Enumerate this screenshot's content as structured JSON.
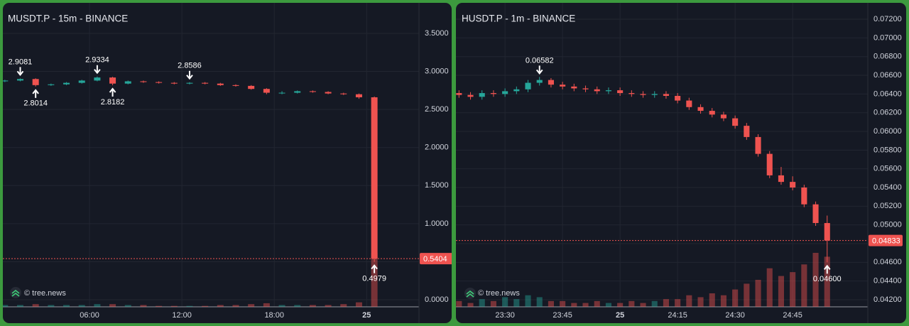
{
  "chart_data": [
    {
      "type": "candlestick",
      "title": "MUSDT.P - 15m - BINANCE",
      "watermark": "© tree.news",
      "up_color": "#26a69a",
      "down_color": "#ef5350",
      "grid": true,
      "xlim": [
        0.37,
        27.4
      ],
      "ylim": [
        -0.093,
        3.901
      ],
      "xticks": [
        {
          "value": 6,
          "label": "06:00"
        },
        {
          "value": 12,
          "label": "12:00"
        },
        {
          "value": 18,
          "label": "18:00"
        },
        {
          "value": 24,
          "label": "25"
        }
      ],
      "yticks": [
        {
          "value": 0,
          "label": "0.0000"
        },
        {
          "value": 0.5,
          "label": "0.5000"
        },
        {
          "value": 1,
          "label": "1.0000"
        },
        {
          "value": 1.5,
          "label": "1.5000"
        },
        {
          "value": 2,
          "label": "2.0000"
        },
        {
          "value": 2.5,
          "label": "2.5000"
        },
        {
          "value": 3,
          "label": "3.0000"
        },
        {
          "value": 3.5,
          "label": "3.5000"
        }
      ],
      "candles": {
        "x": [
          0.5,
          1.5,
          2.5,
          3.5,
          4.5,
          5.5,
          6.5,
          7.5,
          8.5,
          9.5,
          10.5,
          11.5,
          12.5,
          13.5,
          14.5,
          15.5,
          16.5,
          17.5,
          18.5,
          19.5,
          20.5,
          21.5,
          22.5,
          23.5,
          24.5
        ],
        "open": [
          2.87,
          2.88,
          2.9,
          2.82,
          2.83,
          2.85,
          2.88,
          2.92,
          2.84,
          2.87,
          2.86,
          2.85,
          2.84,
          2.85,
          2.84,
          2.82,
          2.81,
          2.77,
          2.72,
          2.72,
          2.74,
          2.73,
          2.71,
          2.7,
          2.66
        ],
        "high": [
          2.89,
          2.9081,
          2.91,
          2.84,
          2.86,
          2.89,
          2.9334,
          2.93,
          2.88,
          2.88,
          2.87,
          2.86,
          2.8586,
          2.86,
          2.85,
          2.83,
          2.82,
          2.78,
          2.74,
          2.75,
          2.75,
          2.74,
          2.72,
          2.71,
          2.67
        ],
        "low": [
          2.86,
          2.87,
          2.8014,
          2.81,
          2.82,
          2.84,
          2.87,
          2.8182,
          2.83,
          2.85,
          2.84,
          2.83,
          2.83,
          2.83,
          2.81,
          2.8,
          2.76,
          2.7,
          2.7,
          2.71,
          2.72,
          2.7,
          2.69,
          2.64,
          0.4979
        ],
        "close": [
          2.88,
          2.9,
          2.82,
          2.83,
          2.85,
          2.88,
          2.92,
          2.84,
          2.87,
          2.86,
          2.85,
          2.84,
          2.85,
          2.84,
          2.82,
          2.81,
          2.77,
          2.72,
          2.72,
          2.74,
          2.73,
          2.71,
          2.7,
          2.66,
          0.5404
        ],
        "volume": [
          2,
          2,
          3,
          2,
          2,
          2,
          3,
          3,
          2,
          2,
          1,
          1,
          1,
          1,
          2,
          2,
          3,
          4,
          2,
          2,
          2,
          2,
          3,
          5,
          60
        ]
      },
      "annotations": [
        {
          "x": 1.5,
          "value": 2.9081,
          "label": "2.9081",
          "position": "above"
        },
        {
          "x": 2.5,
          "value": 2.8014,
          "label": "2.8014",
          "position": "below"
        },
        {
          "x": 6.5,
          "value": 2.9334,
          "label": "2.9334",
          "position": "above"
        },
        {
          "x": 7.5,
          "value": 2.8182,
          "label": "2.8182",
          "position": "below"
        },
        {
          "x": 12.5,
          "value": 2.8586,
          "label": "2.8586",
          "position": "above"
        },
        {
          "x": 24.5,
          "value": 0.4979,
          "label": "0.4979",
          "position": "below"
        }
      ],
      "last_price": {
        "value": 0.5404,
        "label": "0.5404"
      }
    },
    {
      "type": "candlestick",
      "title": "HUSDT.P - 1m - BINANCE",
      "watermark": "© tree.news",
      "up_color": "#26a69a",
      "down_color": "#ef5350",
      "grid": true,
      "xlim": [
        -12.8,
        94.6
      ],
      "ylim": [
        0.04124,
        0.07375
      ],
      "xticks": [
        {
          "value": 0,
          "label": "23:30"
        },
        {
          "value": 15,
          "label": "23:45"
        },
        {
          "value": 30,
          "label": "25"
        },
        {
          "value": 45,
          "label": "24:15"
        },
        {
          "value": 60,
          "label": "24:30"
        },
        {
          "value": 75,
          "label": "24:45"
        }
      ],
      "yticks": [
        {
          "value": 0.042,
          "label": "0.04200"
        },
        {
          "value": 0.044,
          "label": "0.04400"
        },
        {
          "value": 0.046,
          "label": "0.04600"
        },
        {
          "value": 0.048,
          "label": "0.04800"
        },
        {
          "value": 0.05,
          "label": "0.05000"
        },
        {
          "value": 0.052,
          "label": "0.05200"
        },
        {
          "value": 0.054,
          "label": "0.05400"
        },
        {
          "value": 0.056,
          "label": "0.05600"
        },
        {
          "value": 0.058,
          "label": "0.05800"
        },
        {
          "value": 0.06,
          "label": "0.06000"
        },
        {
          "value": 0.062,
          "label": "0.06200"
        },
        {
          "value": 0.064,
          "label": "0.06400"
        },
        {
          "value": 0.066,
          "label": "0.06600"
        },
        {
          "value": 0.068,
          "label": "0.06800"
        },
        {
          "value": 0.07,
          "label": "0.07000"
        },
        {
          "value": 0.072,
          "label": "0.07200"
        }
      ],
      "candles": {
        "x": [
          -12,
          -9,
          -6,
          -3,
          0,
          3,
          6,
          9,
          12,
          15,
          18,
          21,
          24,
          27,
          30,
          33,
          36,
          39,
          42,
          45,
          48,
          51,
          54,
          57,
          60,
          63,
          66,
          69,
          72,
          75,
          78,
          81,
          84
        ],
        "open": [
          0.0641,
          0.0639,
          0.0637,
          0.0641,
          0.064,
          0.0643,
          0.0645,
          0.0652,
          0.0655,
          0.065,
          0.0648,
          0.0646,
          0.0645,
          0.0643,
          0.0644,
          0.0641,
          0.064,
          0.0639,
          0.064,
          0.0638,
          0.0633,
          0.0626,
          0.0622,
          0.0618,
          0.0614,
          0.0606,
          0.0594,
          0.0576,
          0.0553,
          0.0546,
          0.054,
          0.0522,
          0.0502
        ],
        "high": [
          0.0644,
          0.0642,
          0.0644,
          0.0644,
          0.0646,
          0.0648,
          0.0655,
          0.06582,
          0.0657,
          0.0653,
          0.0651,
          0.0649,
          0.0648,
          0.0647,
          0.0647,
          0.0644,
          0.0643,
          0.0643,
          0.0643,
          0.0641,
          0.0636,
          0.0629,
          0.0625,
          0.0621,
          0.0617,
          0.0609,
          0.0597,
          0.0579,
          0.0562,
          0.0552,
          0.0543,
          0.0525,
          0.051
        ],
        "low": [
          0.0636,
          0.0634,
          0.0634,
          0.0637,
          0.0637,
          0.064,
          0.0642,
          0.0649,
          0.0647,
          0.0645,
          0.0643,
          0.0642,
          0.064,
          0.064,
          0.0638,
          0.0637,
          0.0636,
          0.0636,
          0.0635,
          0.063,
          0.0623,
          0.0619,
          0.0615,
          0.0611,
          0.0603,
          0.0591,
          0.0573,
          0.055,
          0.0543,
          0.0537,
          0.0519,
          0.0499,
          0.046
        ],
        "close": [
          0.0639,
          0.0637,
          0.0641,
          0.064,
          0.0643,
          0.0645,
          0.0652,
          0.0655,
          0.065,
          0.0648,
          0.0646,
          0.0645,
          0.0643,
          0.0644,
          0.0641,
          0.064,
          0.0639,
          0.064,
          0.0638,
          0.0633,
          0.0626,
          0.0622,
          0.0618,
          0.0614,
          0.0606,
          0.0594,
          0.0576,
          0.0553,
          0.0546,
          0.054,
          0.0522,
          0.0502,
          0.04833
        ],
        "volume": [
          3,
          2,
          4,
          3,
          5,
          4,
          6,
          5,
          3,
          3,
          2,
          2,
          3,
          2,
          2,
          3,
          2,
          3,
          4,
          4,
          6,
          5,
          7,
          6,
          9,
          12,
          14,
          20,
          16,
          18,
          22,
          28,
          26
        ]
      },
      "annotations": [
        {
          "x": 9,
          "value": 0.06582,
          "label": "0.06582",
          "position": "above"
        },
        {
          "x": 84,
          "value": 0.046,
          "label": "0.04600",
          "position": "below"
        }
      ],
      "last_price": {
        "value": 0.04833,
        "label": "0.04833"
      }
    }
  ]
}
